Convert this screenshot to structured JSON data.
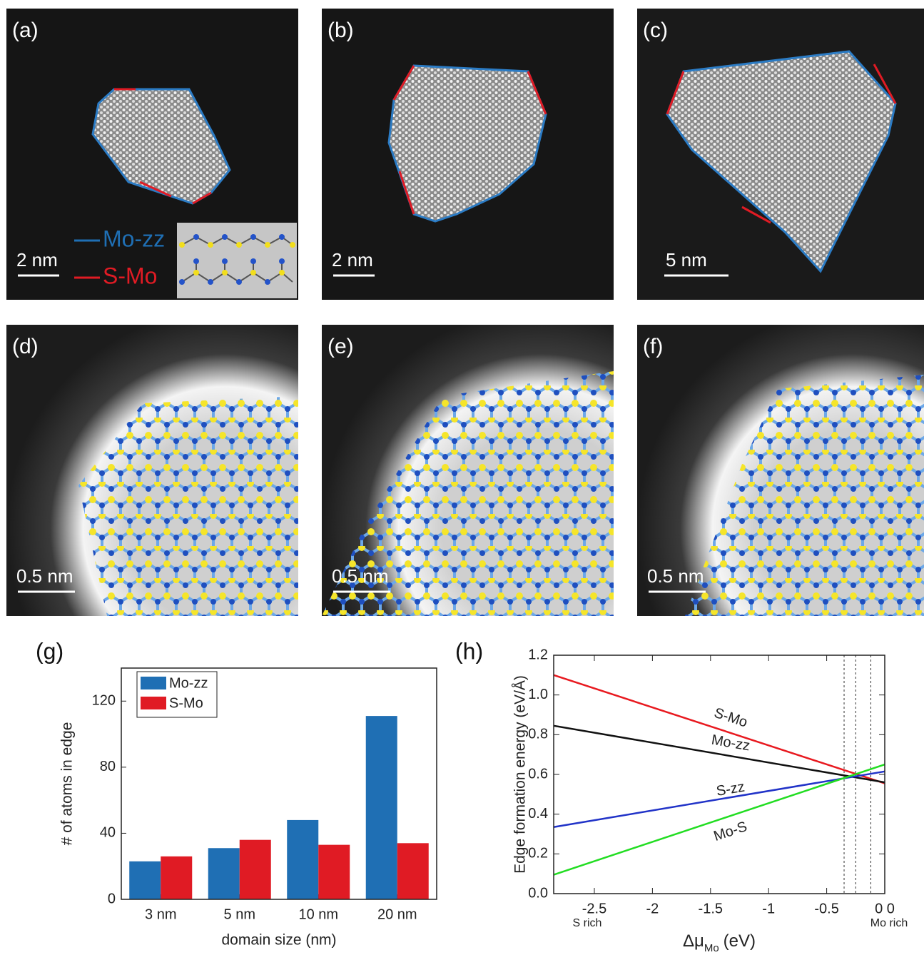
{
  "panels": [
    {
      "label": "(a)",
      "scale": "2 nm"
    },
    {
      "label": "(b)",
      "scale": "2 nm"
    },
    {
      "label": "(c)",
      "scale": "5 nm"
    },
    {
      "label": "(d)",
      "scale": "0.5 nm"
    },
    {
      "label": "(e)",
      "scale": "0.5 nm"
    },
    {
      "label": "(f)",
      "scale": "0.5 nm"
    }
  ],
  "edge_legend": [
    "Mo-zz",
    "S-Mo"
  ],
  "chart_data": [
    {
      "type": "bar",
      "label": "(g)",
      "xlabel": "domain size (nm)",
      "ylabel": "# of atoms in edge",
      "categories": [
        "3 nm",
        "5 nm",
        "10 nm",
        "20 nm"
      ],
      "series": [
        {
          "name": "Mo-zz",
          "color": "#1f6fb4",
          "values": [
            23,
            31,
            48,
            111
          ]
        },
        {
          "name": "S-Mo",
          "color": "#e01b24",
          "values": [
            26,
            36,
            33,
            34
          ]
        }
      ],
      "ylim": [
        0,
        140
      ],
      "yticks": [
        0,
        40,
        80,
        120
      ],
      "legend": "upper-left"
    },
    {
      "type": "line",
      "label": "(h)",
      "ylabel": "Edge formation energy (eV/Å)",
      "xlabel": [
        "Δμ",
        "Mo",
        "(eV)"
      ],
      "x": [
        -2.85,
        0
      ],
      "series": [
        {
          "name": "S-Mo",
          "color": "#e8191f",
          "values": [
            1.1,
            0.555
          ]
        },
        {
          "name": "Mo-zz",
          "color": "#111111",
          "values": [
            0.845,
            0.56
          ]
        },
        {
          "name": "S-zz",
          "color": "#2133c8",
          "values": [
            0.335,
            0.615
          ]
        },
        {
          "name": "Mo-S",
          "color": "#22dd22",
          "values": [
            0.095,
            0.65
          ]
        }
      ],
      "xlim": [
        -2.85,
        0
      ],
      "xticks": [
        -2.5,
        -2.0,
        -1.5,
        -1.0,
        -0.5,
        {
          "value": 0,
          "label": "0 0"
        }
      ],
      "ylim": [
        0,
        1.2
      ],
      "yticks": [
        {
          "value": 0,
          "label": "0.0"
        },
        0.2,
        0.4,
        0.6,
        0.8,
        {
          "value": 1,
          "label": "1.0"
        },
        1.2
      ],
      "vlines": [
        -0.35,
        -0.25,
        -0.12
      ],
      "annotations": [
        "S rich",
        "Mo rich"
      ]
    }
  ]
}
